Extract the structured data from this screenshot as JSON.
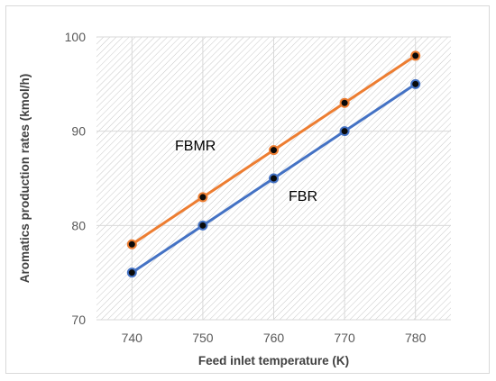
{
  "chart_data": {
    "type": "line",
    "x": [
      740,
      750,
      760,
      770,
      780
    ],
    "xlabel": "Feed inlet temperature (K)",
    "ylabel": "Aromatics production rates (kmol/h)",
    "xlim": [
      735,
      785
    ],
    "ylim": [
      70,
      100
    ],
    "x_ticks": [
      "740",
      "750",
      "760",
      "770",
      "780"
    ],
    "y_ticks": [
      "70",
      "80",
      "90",
      "100"
    ],
    "grid": true,
    "legend": "none",
    "series": [
      {
        "name": "FBMR",
        "values": [
          78,
          83,
          88,
          93,
          98
        ],
        "color": "#ed7d31"
      },
      {
        "name": "FBR",
        "values": [
          75,
          80,
          85,
          90,
          95
        ],
        "color": "#4472c4"
      }
    ],
    "marker_color": "#0a0a0a"
  }
}
